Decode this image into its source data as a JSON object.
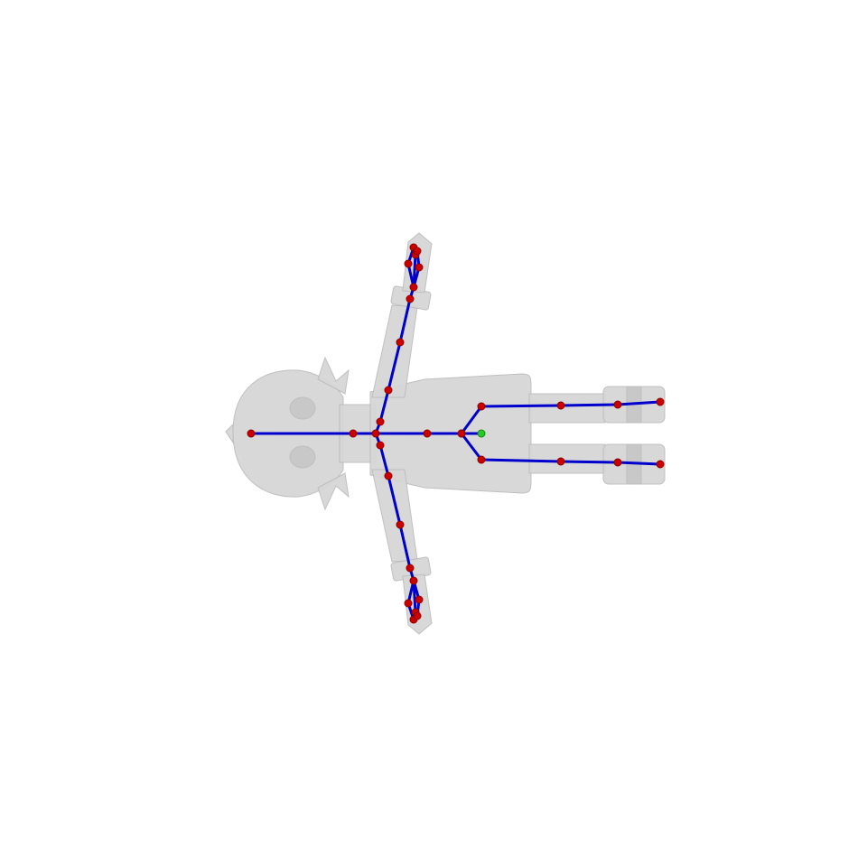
{
  "scene": {
    "background_color": "#ffffff",
    "mesh_color": "#d6d6d6",
    "mesh_edge_color": "#bdbdbd",
    "bone_color": "#0000cc",
    "joint_color": "#cc0000",
    "root_joint_color": "#22cc22"
  },
  "skeleton": {
    "joints": [
      {
        "id": "head-top",
        "name": "head-top-joint",
        "root": false
      },
      {
        "id": "head",
        "name": "head-joint",
        "root": false
      },
      {
        "id": "neck",
        "name": "neck-joint",
        "root": false
      },
      {
        "id": "spine-upper",
        "name": "spine-upper-joint",
        "root": false
      },
      {
        "id": "spine",
        "name": "spine-joint",
        "root": false
      },
      {
        "id": "hips",
        "name": "hips-joint",
        "root": false
      },
      {
        "id": "root",
        "name": "root-joint",
        "root": true
      },
      {
        "id": "l-clavicle",
        "name": "left-clavicle-joint",
        "root": false
      },
      {
        "id": "l-shoulder",
        "name": "left-shoulder-joint",
        "root": false
      },
      {
        "id": "l-elbow",
        "name": "left-elbow-joint",
        "root": false
      },
      {
        "id": "l-wrist",
        "name": "left-wrist-joint",
        "root": false
      },
      {
        "id": "l-hand",
        "name": "left-hand-joint",
        "root": false
      },
      {
        "id": "l-finger-a",
        "name": "left-finger-a-joint",
        "root": false
      },
      {
        "id": "l-finger-b",
        "name": "left-finger-b-joint",
        "root": false
      },
      {
        "id": "l-finger-c",
        "name": "left-finger-c-joint",
        "root": false
      },
      {
        "id": "l-finger-d",
        "name": "left-finger-d-joint",
        "root": false
      },
      {
        "id": "l-finger-e",
        "name": "left-finger-e-joint",
        "root": false
      },
      {
        "id": "r-clavicle",
        "name": "right-clavicle-joint",
        "root": false
      },
      {
        "id": "r-shoulder",
        "name": "right-shoulder-joint",
        "root": false
      },
      {
        "id": "r-elbow",
        "name": "right-elbow-joint",
        "root": false
      },
      {
        "id": "r-wrist",
        "name": "right-wrist-joint",
        "root": false
      },
      {
        "id": "r-hand",
        "name": "right-hand-joint",
        "root": false
      },
      {
        "id": "r-finger-a",
        "name": "right-finger-a-joint",
        "root": false
      },
      {
        "id": "r-finger-b",
        "name": "right-finger-b-joint",
        "root": false
      },
      {
        "id": "r-finger-c",
        "name": "right-finger-c-joint",
        "root": false
      },
      {
        "id": "r-finger-d",
        "name": "right-finger-d-joint",
        "root": false
      },
      {
        "id": "r-finger-e",
        "name": "right-finger-e-joint",
        "root": false
      },
      {
        "id": "l-hip",
        "name": "left-hip-joint",
        "root": false
      },
      {
        "id": "l-knee",
        "name": "left-knee-joint",
        "root": false
      },
      {
        "id": "l-ankle",
        "name": "left-ankle-joint",
        "root": false
      },
      {
        "id": "l-toe",
        "name": "left-toe-joint",
        "root": false
      },
      {
        "id": "r-hip",
        "name": "right-hip-joint",
        "root": false
      },
      {
        "id": "r-knee",
        "name": "right-knee-joint",
        "root": false
      },
      {
        "id": "r-ankle",
        "name": "right-ankle-joint",
        "root": false
      },
      {
        "id": "r-toe",
        "name": "right-toe-joint",
        "root": false
      }
    ],
    "bones": [
      [
        "head-top",
        "head"
      ],
      [
        "head",
        "neck"
      ],
      [
        "neck",
        "spine-upper"
      ],
      [
        "spine-upper",
        "spine"
      ],
      [
        "spine",
        "hips"
      ],
      [
        "hips",
        "root"
      ],
      [
        "neck",
        "l-clavicle"
      ],
      [
        "l-clavicle",
        "l-shoulder"
      ],
      [
        "l-shoulder",
        "l-elbow"
      ],
      [
        "l-elbow",
        "l-wrist"
      ],
      [
        "l-wrist",
        "l-hand"
      ],
      [
        "l-hand",
        "l-finger-a"
      ],
      [
        "l-hand",
        "l-finger-b"
      ],
      [
        "l-hand",
        "l-finger-c"
      ],
      [
        "l-finger-a",
        "l-finger-d"
      ],
      [
        "l-finger-b",
        "l-finger-e"
      ],
      [
        "neck",
        "r-clavicle"
      ],
      [
        "r-clavicle",
        "r-shoulder"
      ],
      [
        "r-shoulder",
        "r-elbow"
      ],
      [
        "r-elbow",
        "r-wrist"
      ],
      [
        "r-wrist",
        "r-hand"
      ],
      [
        "r-hand",
        "r-finger-a"
      ],
      [
        "r-hand",
        "r-finger-b"
      ],
      [
        "r-hand",
        "r-finger-c"
      ],
      [
        "r-finger-a",
        "r-finger-d"
      ],
      [
        "r-finger-b",
        "r-finger-e"
      ],
      [
        "hips",
        "l-hip"
      ],
      [
        "l-hip",
        "l-knee"
      ],
      [
        "l-knee",
        "l-ankle"
      ],
      [
        "l-ankle",
        "l-toe"
      ],
      [
        "hips",
        "r-hip"
      ],
      [
        "r-hip",
        "r-knee"
      ],
      [
        "r-knee",
        "r-ankle"
      ],
      [
        "r-ankle",
        "r-toe"
      ]
    ]
  }
}
